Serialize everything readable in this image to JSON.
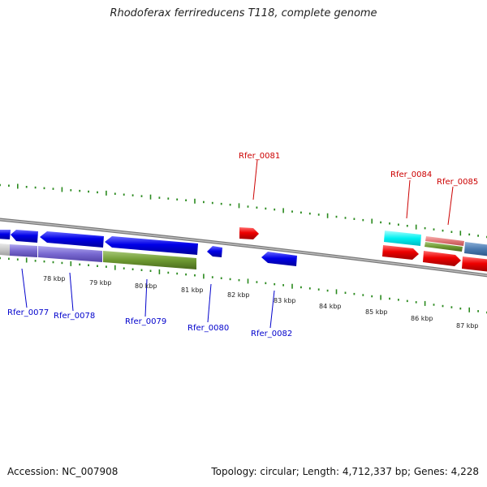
{
  "title": "Rhodoferax ferrireducens T118, complete genome",
  "footer": {
    "accession": "Accession: NC_007908",
    "summary": "Topology: circular; Length: 4,712,337 bp; Genes: 4,228"
  },
  "colors": {
    "backbone": "#888888",
    "tick": "#2a8a1e",
    "forward_gene": "#e00000",
    "reverse_gene": "#0000e0",
    "forward_label": "#cc0000",
    "reverse_label": "#0000cc"
  },
  "kbp_labels": [
    "78 kbp",
    "79 kbp",
    "80 kbp",
    "81 kbp",
    "82 kbp",
    "83 kbp",
    "84 kbp",
    "85 kbp",
    "86 kbp",
    "87 kbp"
  ],
  "gene_labels": {
    "top": [
      "Rfer_0081",
      "Rfer_0084",
      "Rfer_0085"
    ],
    "bottom": [
      "Rfer_0077",
      "Rfer_0078",
      "Rfer_0079",
      "Rfer_0080",
      "Rfer_0082"
    ]
  }
}
